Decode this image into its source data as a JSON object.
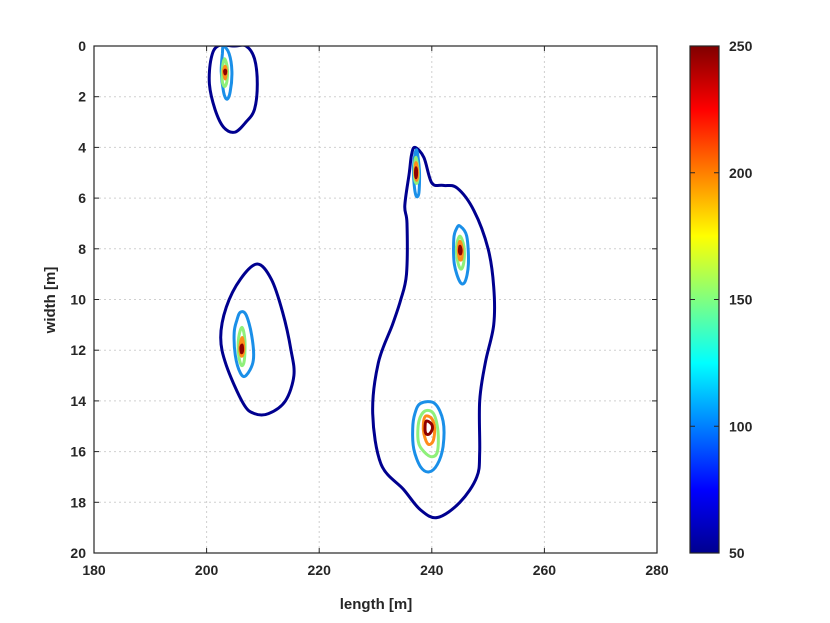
{
  "chart_data": {
    "type": "contour",
    "title": "",
    "xlabel": "length [m]",
    "ylabel": "width [m]",
    "xlim": [
      180,
      280
    ],
    "ylim": [
      0,
      20
    ],
    "y_reversed": true,
    "xticks": [
      180,
      200,
      220,
      240,
      260,
      280
    ],
    "yticks": [
      0,
      2,
      4,
      6,
      8,
      10,
      12,
      14,
      16,
      18,
      20
    ],
    "grid": true,
    "colormap": "jet",
    "colorbar": {
      "range": [
        50,
        250
      ],
      "ticks": [
        50,
        100,
        150,
        200,
        250
      ],
      "placement": "right"
    },
    "levels": [
      {
        "level": 50,
        "color": "#00008f"
      },
      {
        "level": 100,
        "color": "#1a8fe8"
      },
      {
        "level": 150,
        "color": "#8ff07a"
      },
      {
        "level": 200,
        "color": "#ff8c1a"
      },
      {
        "level": 250,
        "color": "#8f0000"
      }
    ],
    "contours": [
      {
        "name": "contour-50-topleft",
        "level": 50,
        "points": [
          [
            202,
            0
          ],
          [
            205,
            0
          ],
          [
            207,
            0
          ],
          [
            208.5,
            0.5
          ],
          [
            209,
            1.5
          ],
          [
            208.5,
            2.5
          ],
          [
            207,
            3
          ],
          [
            205,
            3.4
          ],
          [
            203,
            3.2
          ],
          [
            201.5,
            2.5
          ],
          [
            200.5,
            1.5
          ],
          [
            200.8,
            0.5
          ]
        ]
      },
      {
        "name": "contour-100-topleft",
        "level": 100,
        "points": [
          [
            203,
            0
          ],
          [
            204,
            0.3
          ],
          [
            204.5,
            1
          ],
          [
            204.2,
            1.8
          ],
          [
            203.6,
            2.1
          ],
          [
            203,
            1.8
          ],
          [
            202.6,
            1
          ],
          [
            202.8,
            0.3
          ]
        ]
      },
      {
        "name": "contour-150-topleft",
        "level": 150,
        "points": [
          [
            203.2,
            0.5
          ],
          [
            203.7,
            0.9
          ],
          [
            203.6,
            1.4
          ],
          [
            203.2,
            1.6
          ],
          [
            202.8,
            1.4
          ],
          [
            202.8,
            0.9
          ]
        ]
      },
      {
        "name": "contour-200-topleft",
        "level": 200,
        "points": [
          [
            203.3,
            0.8
          ],
          [
            203.5,
            1.0
          ],
          [
            203.3,
            1.3
          ],
          [
            203.0,
            1.0
          ]
        ]
      },
      {
        "name": "contour-250-topleft",
        "level": 250,
        "points": [
          [
            203.3,
            0.95
          ],
          [
            203.4,
            1.0
          ],
          [
            203.3,
            1.1
          ],
          [
            203.2,
            1.0
          ]
        ]
      },
      {
        "name": "contour-50-middle",
        "level": 50,
        "points": [
          [
            209,
            8.6
          ],
          [
            211.5,
            9.2
          ],
          [
            213.5,
            10.5
          ],
          [
            215,
            12
          ],
          [
            215.5,
            13
          ],
          [
            214,
            14
          ],
          [
            211,
            14.5
          ],
          [
            208.5,
            14.5
          ],
          [
            206.5,
            14.1
          ],
          [
            203.5,
            12.6
          ],
          [
            202.5,
            11.5
          ],
          [
            203.5,
            10.3
          ],
          [
            206,
            9.2
          ]
        ]
      },
      {
        "name": "contour-100-middle",
        "level": 100,
        "points": [
          [
            206,
            10.5
          ],
          [
            207,
            10.6
          ],
          [
            208,
            11.4
          ],
          [
            208.3,
            12.4
          ],
          [
            207,
            13
          ],
          [
            206,
            12.9
          ],
          [
            205.1,
            12.2
          ],
          [
            204.9,
            11.3
          ],
          [
            205.4,
            10.8
          ]
        ]
      },
      {
        "name": "contour-150-middle",
        "level": 150,
        "points": [
          [
            206.3,
            11.1
          ],
          [
            206.8,
            11.6
          ],
          [
            206.7,
            12.4
          ],
          [
            206.2,
            12.6
          ],
          [
            205.7,
            12.2
          ],
          [
            205.7,
            11.5
          ]
        ]
      },
      {
        "name": "contour-200-middle",
        "level": 200,
        "points": [
          [
            206.3,
            11.5
          ],
          [
            206.6,
            11.9
          ],
          [
            206.4,
            12.2
          ],
          [
            206.1,
            12.2
          ],
          [
            205.9,
            11.9
          ]
        ]
      },
      {
        "name": "contour-250-middle",
        "level": 250,
        "points": [
          [
            206.3,
            11.8
          ],
          [
            206.4,
            12
          ],
          [
            206.2,
            12.1
          ],
          [
            206.1,
            11.9
          ]
        ]
      },
      {
        "name": "contour-50-right",
        "level": 50,
        "points": [
          [
            237,
            4
          ],
          [
            238.6,
            4.4
          ],
          [
            240,
            5.4
          ],
          [
            242,
            5.5
          ],
          [
            244.5,
            5.6
          ],
          [
            247.5,
            6.5
          ],
          [
            250,
            8
          ],
          [
            251,
            9.5
          ],
          [
            251,
            11
          ],
          [
            249.5,
            12.5
          ],
          [
            248.5,
            14
          ],
          [
            248.5,
            16
          ],
          [
            248,
            17
          ],
          [
            245,
            18
          ],
          [
            241,
            18.6
          ],
          [
            238,
            18.3
          ],
          [
            235,
            17.5
          ],
          [
            231,
            16.5
          ],
          [
            229.5,
            14.5
          ],
          [
            230.5,
            12.5
          ],
          [
            233,
            11
          ],
          [
            234.5,
            10
          ],
          [
            235.5,
            9
          ],
          [
            235.6,
            7
          ],
          [
            235.2,
            6.3
          ],
          [
            236,
            5
          ],
          [
            236.4,
            4.3
          ]
        ]
      },
      {
        "name": "contour-100-right-a",
        "level": 100,
        "points": [
          [
            237.3,
            4.1
          ],
          [
            237.8,
            4.9
          ],
          [
            237.7,
            5.8
          ],
          [
            237.2,
            5.9
          ],
          [
            236.8,
            5.3
          ],
          [
            236.8,
            4.6
          ]
        ]
      },
      {
        "name": "contour-150-right-a",
        "level": 150,
        "points": [
          [
            237.2,
            4.4
          ],
          [
            237.6,
            5
          ],
          [
            237.4,
            5.4
          ],
          [
            237.0,
            5.3
          ],
          [
            236.9,
            4.8
          ]
        ]
      },
      {
        "name": "contour-200-right-a",
        "level": 200,
        "points": [
          [
            237.2,
            4.6
          ],
          [
            237.5,
            5
          ],
          [
            237.3,
            5.3
          ],
          [
            237.0,
            5
          ]
        ]
      },
      {
        "name": "contour-250-right-a",
        "level": 250,
        "points": [
          [
            237.2,
            4.8
          ],
          [
            237.3,
            5
          ],
          [
            237.2,
            5.2
          ],
          [
            237.1,
            5
          ]
        ]
      },
      {
        "name": "contour-100-right-b",
        "level": 100,
        "points": [
          [
            245,
            7.1
          ],
          [
            246.2,
            7.5
          ],
          [
            246.5,
            8.6
          ],
          [
            245.9,
            9.3
          ],
          [
            245,
            9.3
          ],
          [
            244,
            8.6
          ],
          [
            243.9,
            7.6
          ],
          [
            244.4,
            7.2
          ]
        ]
      },
      {
        "name": "contour-150-right-b",
        "level": 150,
        "points": [
          [
            245,
            7.5
          ],
          [
            245.7,
            7.9
          ],
          [
            245.7,
            8.5
          ],
          [
            245.2,
            8.8
          ],
          [
            244.6,
            8.5
          ],
          [
            244.4,
            7.9
          ]
        ]
      },
      {
        "name": "contour-200-right-b",
        "level": 200,
        "points": [
          [
            245,
            7.7
          ],
          [
            245.4,
            8
          ],
          [
            245.3,
            8.4
          ],
          [
            244.9,
            8.4
          ],
          [
            244.7,
            8
          ]
        ]
      },
      {
        "name": "contour-250-right-b",
        "level": 250,
        "points": [
          [
            245,
            7.9
          ],
          [
            245.2,
            8.05
          ],
          [
            245.1,
            8.2
          ],
          [
            244.9,
            8.1
          ]
        ]
      },
      {
        "name": "contour-100-right-c",
        "level": 100,
        "points": [
          [
            238,
            14.1
          ],
          [
            240.5,
            14.1
          ],
          [
            242,
            14.8
          ],
          [
            242,
            15.8
          ],
          [
            241,
            16.5
          ],
          [
            239.5,
            16.8
          ],
          [
            238,
            16.6
          ],
          [
            236.8,
            15.9
          ],
          [
            236.6,
            15.1
          ],
          [
            237,
            14.5
          ]
        ]
      },
      {
        "name": "contour-150-right-c",
        "level": 150,
        "points": [
          [
            238.8,
            14.4
          ],
          [
            240.3,
            14.5
          ],
          [
            241.1,
            15.2
          ],
          [
            241.0,
            16
          ],
          [
            240,
            16.2
          ],
          [
            238.6,
            16
          ],
          [
            237.6,
            15.6
          ],
          [
            237.7,
            14.8
          ]
        ]
      },
      {
        "name": "contour-200-right-c",
        "level": 200,
        "points": [
          [
            238.9,
            14.6
          ],
          [
            240,
            14.7
          ],
          [
            240.5,
            15.1
          ],
          [
            240.2,
            15.6
          ],
          [
            239.3,
            15.7
          ],
          [
            238.6,
            15.3
          ],
          [
            238.5,
            14.9
          ]
        ]
      },
      {
        "name": "contour-250-right-c",
        "level": 250,
        "points": [
          [
            239,
            14.8
          ],
          [
            239.9,
            14.9
          ],
          [
            240.1,
            15.1
          ],
          [
            239.6,
            15.3
          ],
          [
            239,
            15.3
          ],
          [
            238.8,
            15.1
          ]
        ]
      }
    ]
  }
}
